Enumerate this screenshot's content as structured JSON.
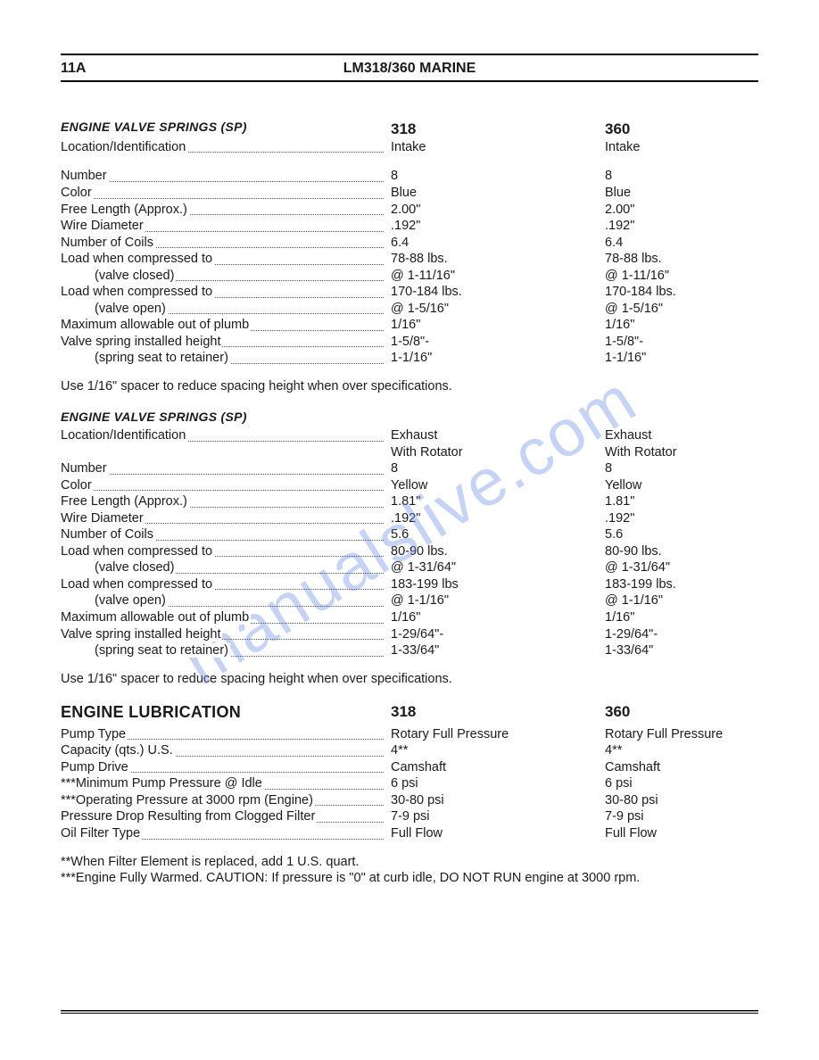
{
  "page_number": "11A",
  "header_title": "LM318/360 MARINE",
  "watermark_text": "manualslive.com",
  "watermark_color": "#6a8ee8",
  "section1": {
    "heading": "ENGINE VALVE SPRINGS (SP)",
    "col318": "318",
    "col360": "360",
    "rows": [
      {
        "label": "Location/Identification",
        "v318": "Intake",
        "v360": "Intake",
        "indent": false
      },
      {
        "gap": true
      },
      {
        "label": "Number",
        "v318": "8",
        "v360": "8",
        "indent": false
      },
      {
        "label": "Color",
        "v318": "Blue",
        "v360": "Blue",
        "indent": false
      },
      {
        "label": "Free Length (Approx.)",
        "v318": "2.00\"",
        "v360": "2.00\"",
        "indent": false
      },
      {
        "label": "Wire Diameter",
        "v318": ".192\"",
        "v360": ".192\"",
        "indent": false
      },
      {
        "label": "Number of Coils",
        "v318": "6.4",
        "v360": "6.4",
        "indent": false
      },
      {
        "label": "Load when compressed to",
        "v318": "78-88 lbs.",
        "v360": "78-88 lbs.",
        "indent": false
      },
      {
        "label": "(valve closed)",
        "v318": "@ 1-11/16\"",
        "v360": "@ 1-11/16\"",
        "indent": true
      },
      {
        "label": "Load when compressed to",
        "v318": "170-184 lbs.",
        "v360": "170-184 lbs.",
        "indent": false
      },
      {
        "label": "(valve open)",
        "v318": "@ 1-5/16\"",
        "v360": "@ 1-5/16\"",
        "indent": true
      },
      {
        "label": "Maximum allowable out of plumb",
        "v318": "1/16\"",
        "v360": "1/16\"",
        "indent": false
      },
      {
        "label": "Valve spring installed  height",
        "v318": "1-5/8\"-",
        "v360": "1-5/8\"-",
        "indent": false
      },
      {
        "label": "(spring seat to retainer)",
        "v318": "1-1/16\"",
        "v360": "1-1/16\"",
        "indent": true
      }
    ],
    "note": "Use 1/16\" spacer to reduce spacing height when over specifications."
  },
  "section2": {
    "heading": "ENGINE VALVE SPRINGS (SP)",
    "rows": [
      {
        "label": "Location/Identification",
        "v318": "Exhaust",
        "v360": "Exhaust",
        "indent": false
      },
      {
        "label": "",
        "v318": "With Rotator",
        "v360": "With Rotator",
        "indent": false,
        "nodots": true
      },
      {
        "label": "Number",
        "v318": "8",
        "v360": "8",
        "indent": false
      },
      {
        "label": "Color",
        "v318": "Yellow",
        "v360": "Yellow",
        "indent": false
      },
      {
        "label": "Free Length (Approx.)",
        "v318": "1.81\"",
        "v360": "1.81\"",
        "indent": false
      },
      {
        "label": "Wire Diameter",
        "v318": ".192\"",
        "v360": ".192\"",
        "indent": false
      },
      {
        "label": "Number of Coils",
        "v318": "5.6",
        "v360": "5.6",
        "indent": false
      },
      {
        "label": "Load when compressed to",
        "v318": "80-90 lbs.",
        "v360": "80-90 lbs.",
        "indent": false
      },
      {
        "label": "(valve closed)",
        "v318": "@ 1-31/64\"",
        "v360": "@ 1-31/64\"",
        "indent": true
      },
      {
        "label": "Load when compressed to",
        "v318": "183-199 lbs",
        "v360": "183-199 lbs.",
        "indent": false
      },
      {
        "label": "(valve open)",
        "v318": "@ 1-1/16\"",
        "v360": "@ 1-1/16\"",
        "indent": true
      },
      {
        "label": "Maximum allowable out of plumb",
        "v318": "1/16\"",
        "v360": "1/16\"",
        "indent": false
      },
      {
        "label": "Valve spring installed  height",
        "v318": "1-29/64\"-",
        "v360": "1-29/64\"-",
        "indent": false
      },
      {
        "label": "(spring seat to retainer)",
        "v318": "1-33/64\"",
        "v360": "1-33/64\"",
        "indent": true
      }
    ],
    "note": "Use 1/16\" spacer to reduce spacing height when over specifications."
  },
  "section3": {
    "heading": "ENGINE LUBRICATION",
    "col318": "318",
    "col360": "360",
    "rows": [
      {
        "label": "Pump Type",
        "v318": "Rotary Full Pressure",
        "v360": "Rotary Full Pressure",
        "indent": false
      },
      {
        "label": "Capacity (qts.) U.S.",
        "v318": "4**",
        "v360": "4**",
        "indent": false
      },
      {
        "label": "Pump Drive",
        "v318": "Camshaft",
        "v360": "Camshaft",
        "indent": false
      },
      {
        "label": "***Minimum Pump Pressure @ Idle",
        "v318": "6 psi",
        "v360": "6 psi",
        "indent": false
      },
      {
        "label": "***Operating Pressure at 3000 rpm (Engine)",
        "v318": "30-80 psi",
        "v360": "30-80 psi",
        "indent": false
      },
      {
        "label": "Pressure Drop Resulting from Clogged Filter",
        "v318": "7-9 psi",
        "v360": "7-9 psi",
        "indent": false
      },
      {
        "label": "Oil Filter Type",
        "v318": "Full Flow",
        "v360": "Full Flow",
        "indent": false
      }
    ],
    "footnote1": "**When Filter Element is replaced, add 1 U.S. quart.",
    "footnote2": "***Engine Fully Warmed. CAUTION:  If pressure is \"0\" at curb idle, DO NOT RUN engine at 3000 rpm."
  }
}
